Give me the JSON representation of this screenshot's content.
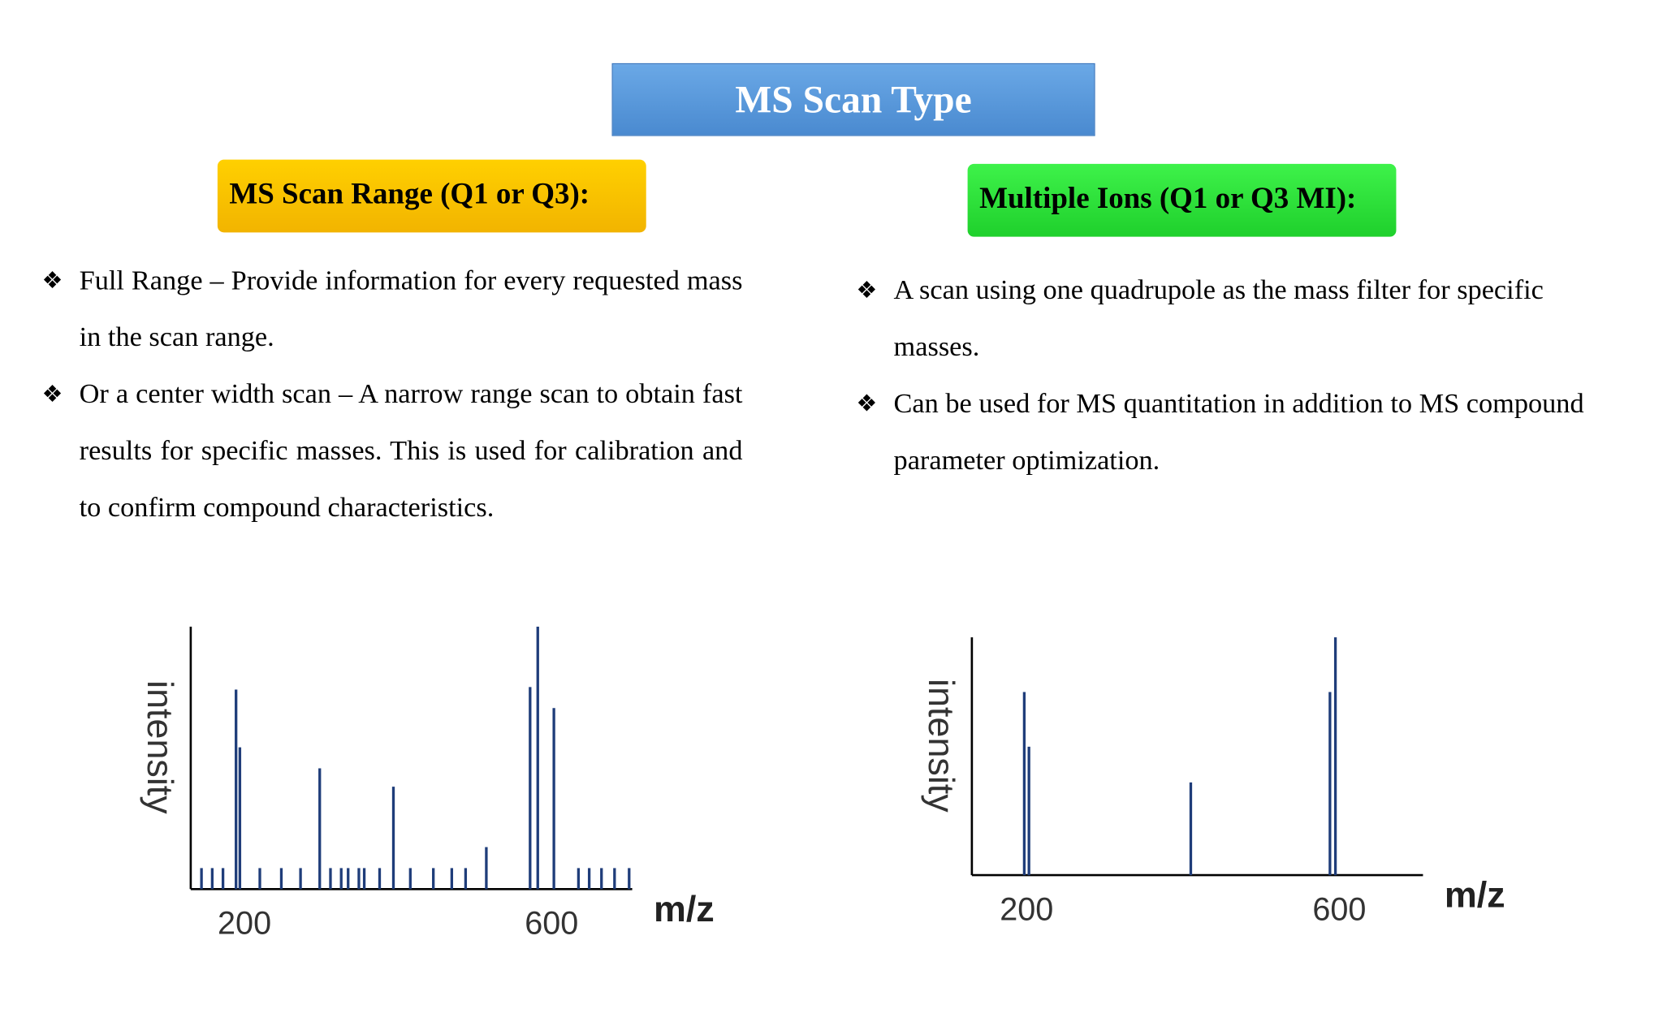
{
  "title": "MS Scan Type",
  "left": {
    "heading": "MS Scan Range (Q1 or Q3):",
    "bullets": [
      "Full Range – Provide information for every requested mass in the scan range.",
      "Or a center width scan – A narrow range scan to obtain fast results for specific masses. This is used for calibration and to confirm compound characteristics."
    ],
    "chart": {
      "type": "bar",
      "y_label": "intensity",
      "x_label": "m/z",
      "xlim": [
        130,
        705
      ],
      "xticks": [
        200,
        600
      ],
      "ylim": [
        0,
        100
      ],
      "color": "#1f3d7a",
      "x": [
        144,
        158,
        172,
        189,
        194,
        220,
        248,
        273,
        298,
        312,
        326,
        335,
        349,
        356,
        376,
        394,
        416,
        446,
        470,
        488,
        515,
        572,
        582,
        603,
        635,
        649,
        665,
        682,
        701
      ],
      "values": [
        8,
        8,
        8,
        76,
        54,
        8,
        8,
        8,
        46,
        8,
        8,
        8,
        8,
        8,
        8,
        39,
        8,
        8,
        8,
        8,
        16,
        77,
        100,
        69,
        8,
        8,
        8,
        8,
        8
      ]
    }
  },
  "right": {
    "heading": "Multiple Ions (Q1 or Q3 MI):",
    "bullets": [
      "A scan using one quadrupole as the mass filter for specific masses.",
      "Can be used for MS quantitation in addition to MS compound parameter optimization."
    ],
    "chart": {
      "type": "bar",
      "y_label": "intensity",
      "x_label": "m/z",
      "xlim": [
        130,
        707
      ],
      "xticks": [
        200,
        600
      ],
      "ylim": [
        0,
        100
      ],
      "color": "#1f3d7a",
      "x": [
        197,
        203,
        410,
        588,
        595
      ],
      "values": [
        77,
        54,
        39,
        77,
        100
      ]
    }
  }
}
